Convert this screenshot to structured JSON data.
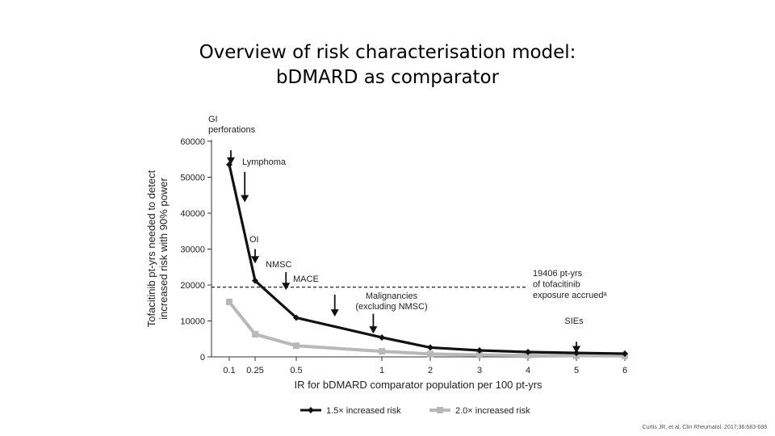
{
  "slide": {
    "title_line1": "Overview of risk characterisation model:",
    "title_line2": "b​DMARD as comparator",
    "citation": "Curtis JR, et al. Clin Rheumatol. 2017;36:683-688"
  },
  "chart_data": {
    "type": "line",
    "xlabel": "IR for bDMARD comparator population per 100 pt-yrs",
    "ylabel_line1": "Tofacitinib pt-yrs needed to detect",
    "ylabel_line2": "increased risk with 90% power",
    "x_categories": [
      "0.1",
      "0.25",
      "0.5",
      "1",
      "2",
      "3",
      "4",
      "5",
      "6"
    ],
    "y_ticks": [
      "0",
      "10000",
      "20000",
      "30000",
      "40000",
      "50000",
      "60000"
    ],
    "ylim": [
      0,
      60000
    ],
    "series": [
      {
        "name": "1.5× increased risk",
        "color": "#111111",
        "marker": "diamond",
        "values": [
          53500,
          21200,
          10900,
          5400,
          2600,
          1800,
          1350,
          1100,
          900
        ]
      },
      {
        "name": "2.0× increased risk",
        "color": "#b8b8b8",
        "marker": "square",
        "values": [
          15300,
          6300,
          3100,
          1550,
          800,
          550,
          420,
          330,
          280
        ]
      }
    ],
    "reference_line": {
      "value": 19406,
      "label_lines": [
        "19406 pt-yrs",
        "of tofacitinib",
        "exposure accruedᵃ"
      ]
    },
    "annotations": [
      {
        "label_lines": [
          "GI",
          "perforations"
        ],
        "x_index": 0.06,
        "arrow_from": 57500,
        "arrow_to": 53500
      },
      {
        "label_lines": [
          "Lymphoma"
        ],
        "x_index": 0.6,
        "arrow_from": 51500,
        "arrow_to": 43000
      },
      {
        "label_lines": [
          "OI"
        ],
        "x_index": 1.0,
        "arrow_from": 30000,
        "arrow_to": 26000
      },
      {
        "label_lines": [
          "NMSC"
        ],
        "x_index": 1.75,
        "arrow_from": 23600,
        "arrow_to": 18600
      },
      {
        "label_lines": [
          "MACE"
        ],
        "x_index": 2.45,
        "arrow_from": 17300,
        "arrow_to": 11200
      },
      {
        "label_lines": [
          "Malignancies",
          "(excluding NMSC)"
        ],
        "x_index": 2.9,
        "arrow_from": 12000,
        "arrow_to": 6500
      },
      {
        "label_lines": [
          "SIEs"
        ],
        "x_index": 7.0,
        "arrow_from": 4200,
        "arrow_to": 1000
      }
    ],
    "legend_position": "bottom"
  }
}
